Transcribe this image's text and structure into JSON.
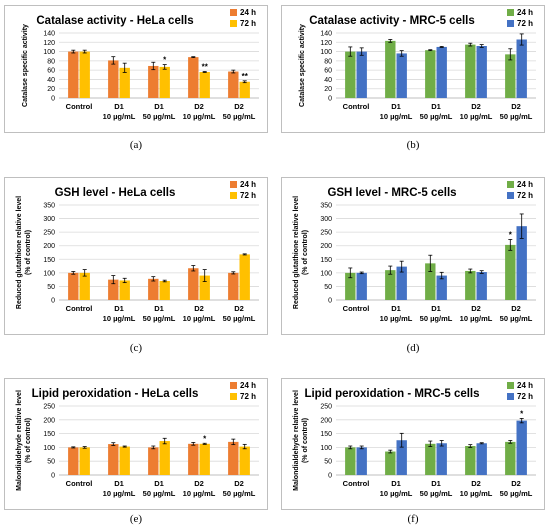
{
  "colors": {
    "hela_24h": "#ED7D31",
    "hela_72h": "#FFC000",
    "mrc_24h": "#70AD47",
    "mrc_72h": "#4472C4"
  },
  "chart_data": [
    {
      "panel": "(a)",
      "type": "bar",
      "title": "Catalase activity - HeLa cells",
      "ylabel": "Catalase specific activity",
      "ylim": [
        0,
        140
      ],
      "yticks": [
        0,
        20,
        40,
        60,
        80,
        100,
        120,
        140
      ],
      "categories": [
        [
          "Control",
          ""
        ],
        [
          "D1",
          "10 µg/mL"
        ],
        [
          "D1",
          "50 µg/mL"
        ],
        [
          "D2",
          "10 µg/mL"
        ],
        [
          "D2",
          "50 µg/mL"
        ]
      ],
      "legend_position": "top-right",
      "series": [
        {
          "name": "24 h",
          "color_key": "hela_24h",
          "values": [
            100,
            81,
            69,
            88,
            57
          ],
          "errors": [
            3,
            8,
            8,
            1,
            3
          ],
          "marks": [
            "",
            "",
            "",
            "",
            ""
          ]
        },
        {
          "name": "72 h",
          "color_key": "hela_72h",
          "values": [
            100,
            65,
            67,
            56,
            35
          ],
          "errors": [
            3,
            10,
            5,
            1,
            2
          ],
          "marks": [
            "",
            "",
            "*",
            "**",
            "**"
          ]
        }
      ]
    },
    {
      "panel": "(b)",
      "type": "bar",
      "title": "Catalase activity - MRC-5 cells",
      "ylabel": "Catalase specific activity",
      "ylim": [
        0,
        140
      ],
      "yticks": [
        0,
        20,
        40,
        60,
        80,
        100,
        120,
        140
      ],
      "categories": [
        [
          "Control",
          ""
        ],
        [
          "D1",
          "10 µg/mL"
        ],
        [
          "D1",
          "50 µg/mL"
        ],
        [
          "D2",
          "10 µg/mL"
        ],
        [
          "D2",
          "50 µg/mL"
        ]
      ],
      "legend_position": "top-right",
      "series": [
        {
          "name": "24 h",
          "color_key": "mrc_24h",
          "values": [
            100,
            123,
            103,
            115,
            94
          ],
          "errors": [
            10,
            3,
            1,
            3,
            12
          ],
          "marks": [
            "",
            "",
            "",
            "",
            ""
          ]
        },
        {
          "name": "72 h",
          "color_key": "mrc_72h",
          "values": [
            100,
            96,
            110,
            112,
            126
          ],
          "errors": [
            8,
            6,
            1,
            3,
            12
          ],
          "marks": [
            "",
            "",
            "",
            "",
            ""
          ]
        }
      ]
    },
    {
      "panel": "(c)",
      "type": "bar",
      "title": "GSH level - HeLa cells",
      "ylabel": "Reduced glutathione relative level",
      "ylabel2": "(% of control)",
      "ylim": [
        0,
        350
      ],
      "yticks": [
        0,
        50,
        100,
        150,
        200,
        250,
        300,
        350
      ],
      "categories": [
        [
          "Control",
          ""
        ],
        [
          "D1",
          "10 µg/mL"
        ],
        [
          "D1",
          "50 µg/mL"
        ],
        [
          "D2",
          "10 µg/mL"
        ],
        [
          "D2",
          "50 µg/mL"
        ]
      ],
      "legend_position": "top-right",
      "series": [
        {
          "name": "24 h",
          "color_key": "hela_24h",
          "values": [
            100,
            75,
            78,
            117,
            100
          ],
          "errors": [
            5,
            15,
            8,
            10,
            4
          ],
          "marks": [
            "",
            "",
            "",
            "",
            ""
          ]
        },
        {
          "name": "72 h",
          "color_key": "hela_72h",
          "values": [
            100,
            72,
            70,
            90,
            168
          ],
          "errors": [
            12,
            8,
            3,
            22,
            2
          ],
          "marks": [
            "",
            "",
            "",
            "",
            ""
          ]
        }
      ]
    },
    {
      "panel": "(d)",
      "type": "bar",
      "title": "GSH level - MRC-5 cells",
      "ylabel": "Reduced glutathione relative level",
      "ylabel2": "(% of control)",
      "ylim": [
        0,
        350
      ],
      "yticks": [
        0,
        50,
        100,
        150,
        200,
        250,
        300,
        350
      ],
      "categories": [
        [
          "Control",
          ""
        ],
        [
          "D1",
          "10 µg/mL"
        ],
        [
          "D1",
          "50 µg/mL"
        ],
        [
          "D2",
          "10 µg/mL"
        ],
        [
          "D2",
          "50 µg/mL"
        ]
      ],
      "legend_position": "top-right",
      "series": [
        {
          "name": "24 h",
          "color_key": "mrc_24h",
          "values": [
            100,
            110,
            135,
            107,
            203
          ],
          "errors": [
            18,
            15,
            30,
            7,
            20
          ],
          "marks": [
            "",
            "",
            "",
            "",
            "*"
          ]
        },
        {
          "name": "72 h",
          "color_key": "mrc_72h",
          "values": [
            100,
            123,
            90,
            103,
            272
          ],
          "errors": [
            3,
            20,
            12,
            5,
            45
          ],
          "marks": [
            "",
            "",
            "",
            "",
            ""
          ]
        }
      ]
    },
    {
      "panel": "(e)",
      "type": "bar",
      "title": "Lipid peroxidation - HeLa cells",
      "ylabel": "Malondialdehyde relative level",
      "ylabel2": "(% of control)",
      "ylim": [
        0,
        250
      ],
      "yticks": [
        0,
        50,
        100,
        150,
        200,
        250
      ],
      "categories": [
        [
          "Control",
          ""
        ],
        [
          "D1",
          "10 µg/mL"
        ],
        [
          "D1",
          "50 µg/mL"
        ],
        [
          "D2",
          "10 µg/mL"
        ],
        [
          "D2",
          "50 µg/mL"
        ]
      ],
      "legend_position": "top-right",
      "series": [
        {
          "name": "24 h",
          "color_key": "hela_24h",
          "values": [
            100,
            112,
            100,
            113,
            120
          ],
          "errors": [
            2,
            5,
            5,
            5,
            10
          ],
          "marks": [
            "",
            "",
            "",
            "",
            ""
          ]
        },
        {
          "name": "72 h",
          "color_key": "hela_72h",
          "values": [
            100,
            103,
            123,
            113,
            103
          ],
          "errors": [
            3,
            2,
            10,
            2,
            8
          ],
          "marks": [
            "",
            "",
            "",
            "*",
            ""
          ]
        }
      ]
    },
    {
      "panel": "(f)",
      "type": "bar",
      "title": "Lipid peroxidation - MRC-5 cells",
      "ylabel": "Malondialdehyde relative level",
      "ylabel2": "(% of control)",
      "ylim": [
        0,
        250
      ],
      "yticks": [
        0,
        50,
        100,
        150,
        200,
        250
      ],
      "categories": [
        [
          "Control",
          ""
        ],
        [
          "D1",
          "10 µg/mL"
        ],
        [
          "D1",
          "50 µg/mL"
        ],
        [
          "D2",
          "10 µg/mL"
        ],
        [
          "D2",
          "50 µg/mL"
        ]
      ],
      "legend_position": "top-right",
      "series": [
        {
          "name": "24 h",
          "color_key": "mrc_24h",
          "values": [
            100,
            85,
            113,
            105,
            120
          ],
          "errors": [
            5,
            5,
            10,
            5,
            5
          ],
          "marks": [
            "",
            "",
            "",
            "",
            ""
          ]
        },
        {
          "name": "72 h",
          "color_key": "mrc_72h",
          "values": [
            100,
            126,
            115,
            115,
            197
          ],
          "errors": [
            5,
            25,
            10,
            2,
            8
          ],
          "marks": [
            "",
            "",
            "",
            "",
            "*"
          ]
        }
      ]
    }
  ]
}
